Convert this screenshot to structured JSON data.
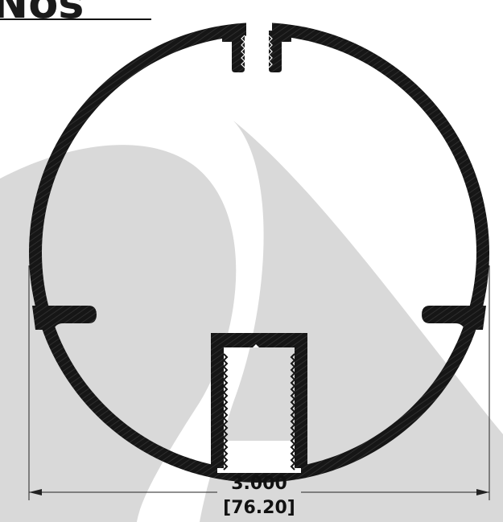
{
  "title_fragment": "Nos",
  "dimension": {
    "imperial": "3.000",
    "metric": "[76.20]"
  },
  "colors": {
    "profile": "#161616",
    "watermark": "#d9d9d9",
    "background": "#ffffff",
    "dimension_line": "#222222"
  }
}
